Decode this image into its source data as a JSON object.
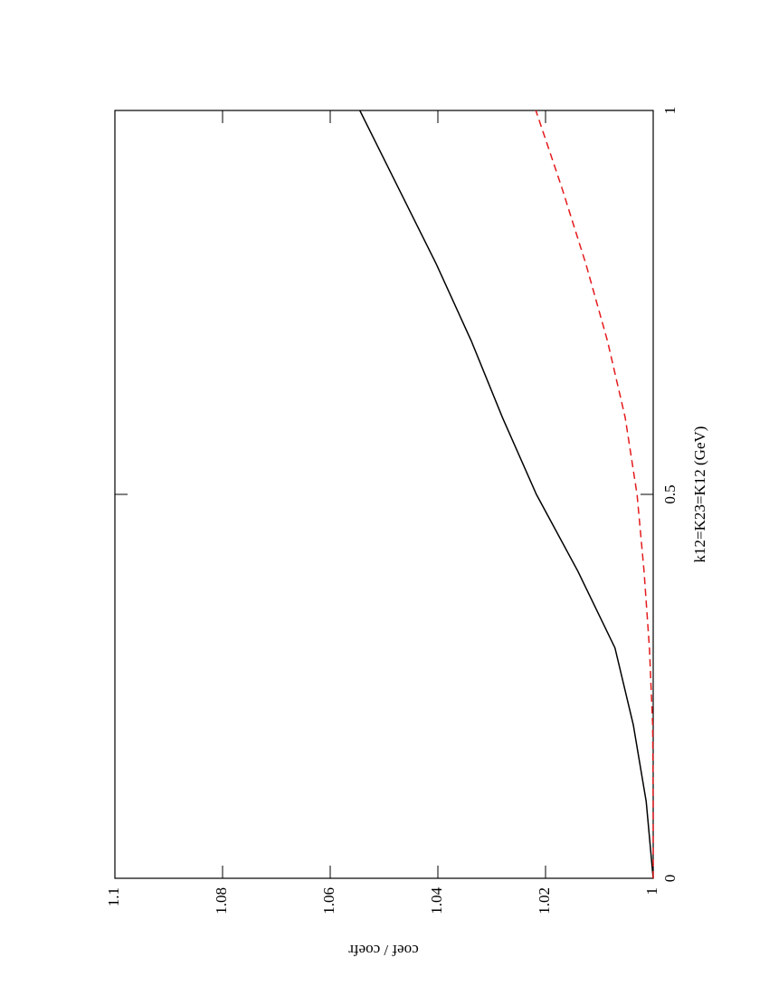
{
  "chart_data": {
    "type": "line",
    "xlabel": "k12=K23=K12 (GeV)",
    "ylabel": "coef / coefr",
    "x": [
      0,
      0.1,
      0.2,
      0.3,
      0.4,
      0.5,
      0.6,
      0.7,
      0.8,
      0.9,
      1.0
    ],
    "series": [
      {
        "color": "#000000",
        "dash": false,
        "values": [
          1.0,
          1.0013,
          1.0037,
          1.0071,
          1.014,
          1.0217,
          1.028,
          1.0338,
          1.0403,
          1.0474,
          1.0545
        ]
      },
      {
        "color": "#e41a1c",
        "dash": true,
        "values": [
          1.0,
          1.0,
          1.0001,
          1.0007,
          1.0017,
          1.003,
          1.0052,
          1.0085,
          1.0125,
          1.017,
          1.0218
        ]
      }
    ],
    "xlim": [
      0,
      1
    ],
    "xticks": [
      0,
      0.5,
      1
    ],
    "ylim": [
      1,
      1.1
    ],
    "yticks": [
      1,
      1.02,
      1.04,
      1.06,
      1.08,
      1.1
    ],
    "grid": false
  }
}
